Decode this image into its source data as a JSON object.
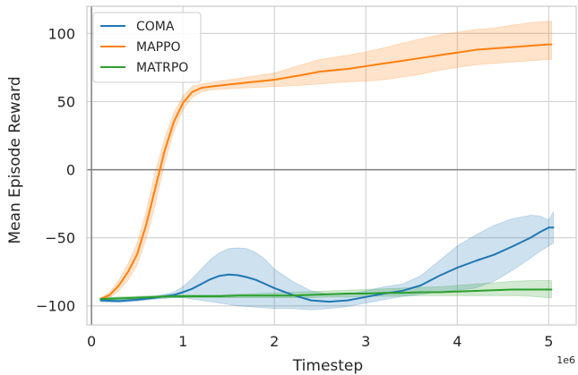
{
  "chart_data": {
    "type": "line",
    "title": "",
    "xlabel": "Timestep",
    "ylabel": "Mean Episode Reward",
    "x_offset_label": "1e6",
    "xlim": [
      -0.05,
      5.3
    ],
    "ylim": [
      -114,
      120
    ],
    "xticks": [
      0,
      1,
      2,
      3,
      4,
      5
    ],
    "yticks": [
      -100,
      -50,
      0,
      50,
      100
    ],
    "xtick_labels": [
      "0",
      "1",
      "2",
      "3",
      "4",
      "5"
    ],
    "ytick_labels": [
      "−100",
      "−50",
      "0",
      "50",
      "100"
    ],
    "grid": true,
    "zero_line": true,
    "legend_position": "upper-left",
    "series": [
      {
        "name": "COMA",
        "color": "#1f77b4",
        "x": [
          0.1,
          0.3,
          0.5,
          0.7,
          0.9,
          1.0,
          1.1,
          1.2,
          1.3,
          1.4,
          1.5,
          1.6,
          1.7,
          1.8,
          1.9,
          2.0,
          2.2,
          2.4,
          2.6,
          2.8,
          3.0,
          3.2,
          3.4,
          3.6,
          3.8,
          4.0,
          4.2,
          4.4,
          4.6,
          4.8,
          4.9,
          5.0,
          5.05
        ],
        "y": [
          -96,
          -96.5,
          -95.5,
          -94,
          -92,
          -90,
          -87.5,
          -84,
          -80.5,
          -78,
          -77,
          -77.5,
          -79,
          -81,
          -84,
          -87,
          -92,
          -96,
          -97,
          -96,
          -93.5,
          -91,
          -89,
          -85,
          -78,
          -72,
          -67,
          -62.5,
          -56.5,
          -50,
          -46,
          -42.5,
          -42.5
        ],
        "lower": [
          -97,
          -97.5,
          -96.5,
          -95,
          -94,
          -94,
          -95,
          -96,
          -97,
          -98,
          -99,
          -100,
          -100.5,
          -101,
          -101.5,
          -102,
          -102,
          -103,
          -102,
          -100.5,
          -98,
          -95.5,
          -93,
          -91.5,
          -90,
          -88.5,
          -87,
          -82,
          -74,
          -65,
          -60,
          -56,
          -54
        ],
        "upper": [
          -95,
          -95.5,
          -94.5,
          -93,
          -90,
          -86,
          -80,
          -73,
          -66,
          -61,
          -58,
          -57.5,
          -58,
          -61,
          -66,
          -73,
          -82,
          -89,
          -91.5,
          -91.5,
          -89,
          -86,
          -84,
          -78,
          -67,
          -56,
          -48,
          -41,
          -36,
          -33.5,
          -34,
          -37,
          -31
        ]
      },
      {
        "name": "MAPPO",
        "color": "#ff7f0e",
        "x": [
          0.1,
          0.2,
          0.3,
          0.4,
          0.5,
          0.6,
          0.7,
          0.8,
          0.9,
          1.0,
          1.1,
          1.2,
          1.3,
          1.5,
          1.7,
          2.0,
          2.3,
          2.5,
          2.8,
          3.0,
          3.2,
          3.4,
          3.6,
          3.8,
          4.0,
          4.2,
          4.4,
          4.6,
          4.8,
          5.0,
          5.03
        ],
        "y": [
          -95,
          -92,
          -85,
          -75,
          -62,
          -40,
          -13,
          14,
          35,
          49,
          57,
          60,
          61,
          62.5,
          64,
          66,
          69.5,
          72,
          74,
          76,
          78,
          80,
          82,
          84,
          86,
          88,
          89,
          90,
          91,
          92,
          92
        ],
        "lower": [
          -96,
          -94,
          -89,
          -81,
          -70,
          -50,
          -25,
          5,
          28,
          44,
          53,
          57,
          58.5,
          59.5,
          60,
          61,
          62,
          63,
          64.5,
          65,
          66,
          68,
          70,
          73,
          75,
          77,
          78,
          79,
          80,
          81,
          81
        ],
        "upper": [
          -94,
          -90,
          -81,
          -69,
          -54,
          -30,
          -1,
          23,
          42,
          54,
          61,
          63,
          64,
          66,
          68,
          71,
          77,
          81,
          84,
          86.5,
          89.5,
          93,
          96,
          99,
          101,
          103,
          104,
          106,
          108,
          109,
          109
        ]
      },
      {
        "name": "MATRPO",
        "color": "#2ca02c",
        "x": [
          0.1,
          0.3,
          0.5,
          0.7,
          0.9,
          1.0,
          1.2,
          1.4,
          1.6,
          1.8,
          2.0,
          2.2,
          2.4,
          2.6,
          2.8,
          3.0,
          3.2,
          3.4,
          3.6,
          3.8,
          4.0,
          4.2,
          4.4,
          4.6,
          4.8,
          5.0,
          5.03
        ],
        "y": [
          -95,
          -94.5,
          -94,
          -93.5,
          -93,
          -93,
          -93,
          -93,
          -92.5,
          -92.5,
          -92.5,
          -92.5,
          -92,
          -91.5,
          -91,
          -91,
          -90.5,
          -90.5,
          -90,
          -90,
          -89.5,
          -89,
          -88.5,
          -88,
          -88,
          -88,
          -88
        ],
        "lower": [
          -96,
          -95.5,
          -95,
          -94.5,
          -94,
          -94,
          -94,
          -94,
          -94,
          -94,
          -94,
          -94,
          -94,
          -93.5,
          -93.5,
          -93,
          -93,
          -93,
          -92.5,
          -92.5,
          -92.5,
          -92.5,
          -92.5,
          -92.5,
          -93,
          -94,
          -94
        ],
        "upper": [
          -94,
          -93.5,
          -93,
          -92.5,
          -92,
          -92,
          -92,
          -92,
          -91.5,
          -91,
          -90.5,
          -90,
          -89.5,
          -89,
          -88.5,
          -88,
          -87.5,
          -87,
          -86.5,
          -86,
          -85,
          -84,
          -83,
          -82,
          -81.5,
          -81.5,
          -81.5
        ]
      }
    ]
  }
}
